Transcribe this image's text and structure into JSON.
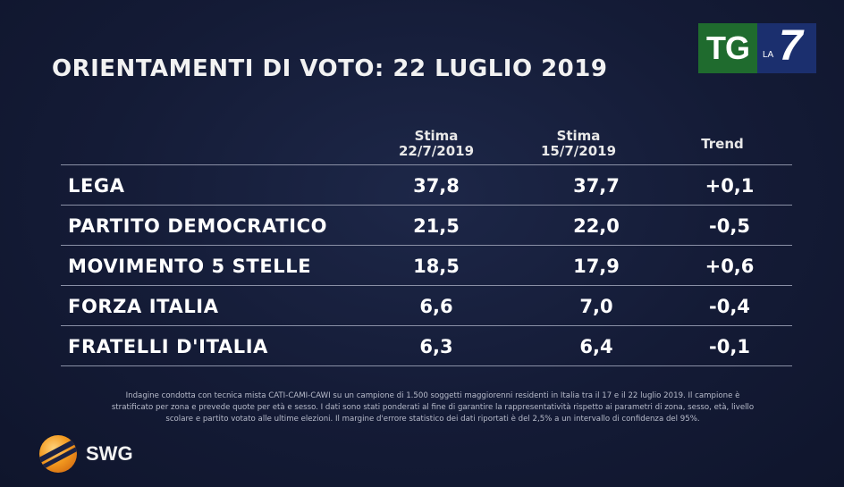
{
  "title": "ORIENTAMENTI DI VOTO: 22 LUGLIO 2019",
  "logo": {
    "tg": "TG",
    "la": "LA",
    "seven": "7"
  },
  "chart_data": {
    "type": "table",
    "title": "ORIENTAMENTI DI VOTO: 22 LUGLIO 2019",
    "columns": [
      {
        "label": "Stima",
        "sub": "22/7/2019"
      },
      {
        "label": "Stima",
        "sub": "15/7/2019"
      },
      {
        "label": "Trend",
        "sub": ""
      }
    ],
    "rows": [
      {
        "party": "LEGA",
        "v1": "37,8",
        "v2": "37,7",
        "trend": "+0,1"
      },
      {
        "party": "PARTITO DEMOCRATICO",
        "v1": "21,5",
        "v2": "22,0",
        "trend": "-0,5"
      },
      {
        "party": "MOVIMENTO 5 STELLE",
        "v1": "18,5",
        "v2": "17,9",
        "trend": "+0,6"
      },
      {
        "party": "FORZA ITALIA",
        "v1": "6,6",
        "v2": "7,0",
        "trend": "-0,4"
      },
      {
        "party": "FRATELLI D'ITALIA",
        "v1": "6,3",
        "v2": "6,4",
        "trend": "-0,1"
      }
    ]
  },
  "note": {
    "line1": "Indagine condotta con tecnica mista CATI-CAMI-CAWI su un campione di 1.500 soggetti maggiorenni residenti in Italia tra il 17 e il 22  luglio 2019. Il campione è",
    "line2": "stratificato per zona e prevede quote per età e sesso. I dati sono stati ponderati al fine di garantire la rappresentatività rispetto ai parametri di zona, sesso, età, livello",
    "line3": "scolare e partito votato alle ultime elezioni. Il margine d'errore statistico dei dati riportati è del 2,5% a un intervallo di confidenza del 95%."
  },
  "brand": "SWG"
}
